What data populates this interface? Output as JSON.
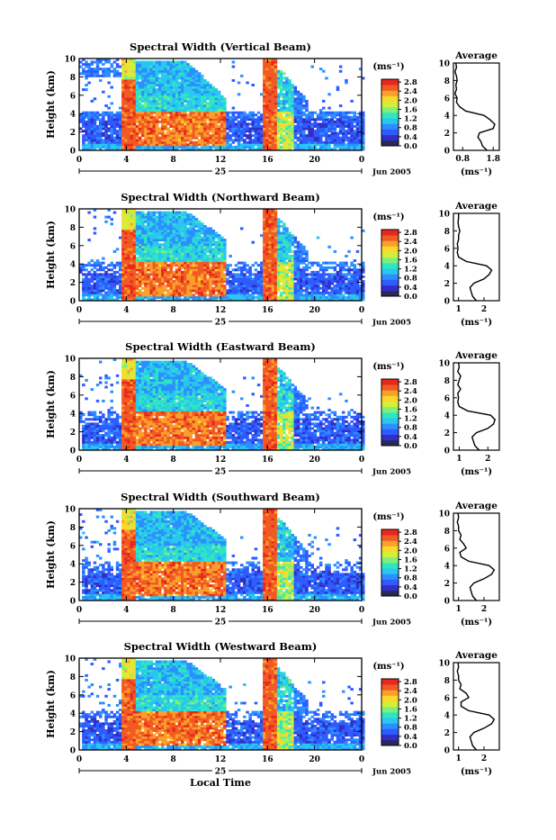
{
  "figure": {
    "common_xlabel": "Local Time",
    "ylabel": "Height (km)",
    "unit_label": "(ms⁻¹)",
    "date_label": "Jun 2005",
    "day_label": "25",
    "x_ticks": [
      "0",
      "4",
      "8",
      "12",
      "16",
      "20",
      "0"
    ],
    "y_ticks": [
      "0",
      "2",
      "4",
      "6",
      "8",
      "10"
    ],
    "colorbar_ticks": [
      "0.0",
      "0.4",
      "0.8",
      "1.2",
      "1.6",
      "2.0",
      "2.4",
      "2.8"
    ],
    "average_title": "Average",
    "average_xlabel": "(ms⁻¹)"
  },
  "colors": {
    "colormap": [
      "#2a2a5a",
      "#3030c8",
      "#2f5bff",
      "#2b8fff",
      "#29c6f0",
      "#2fe6c0",
      "#7ef07a",
      "#d4ee3a",
      "#fbd82a",
      "#f9a02a",
      "#f25a24",
      "#e8281e"
    ]
  },
  "chart_data": [
    {
      "type": "heatmap",
      "title": "Spectral Width (Vertical Beam)",
      "xlabel": "",
      "ylabel": "Height (km)",
      "xlim": [
        0,
        24
      ],
      "ylim": [
        0,
        10
      ],
      "colorbar": {
        "label": "(ms⁻¹)",
        "range": [
          0.0,
          2.8
        ]
      },
      "average_profile": {
        "title": "Average",
        "xlabel": "(ms⁻¹)",
        "x_ticks": [
          "0.8",
          "1.8"
        ],
        "xlim": [
          0.5,
          2.0
        ],
        "height": [
          0,
          0.5,
          1,
          1.5,
          2,
          2.5,
          3,
          3.5,
          4,
          4.5,
          5,
          5.5,
          6,
          6.5,
          7,
          7.5,
          8,
          8.5,
          9,
          9.5,
          10
        ],
        "value": [
          1.6,
          1.45,
          1.4,
          1.3,
          1.35,
          1.8,
          1.85,
          1.7,
          1.5,
          0.9,
          0.7,
          0.6,
          0.62,
          0.55,
          0.6,
          0.58,
          0.62,
          0.6,
          0.55,
          0.6,
          0.58
        ]
      }
    },
    {
      "type": "heatmap",
      "title": "Spectral Width (Northward Beam)",
      "xlabel": "",
      "ylabel": "Height (km)",
      "xlim": [
        0,
        24
      ],
      "ylim": [
        0,
        10
      ],
      "colorbar": {
        "label": "(ms⁻¹)",
        "range": [
          0.0,
          2.8
        ]
      },
      "average_profile": {
        "title": "Average",
        "xlabel": "(ms⁻¹)",
        "x_ticks": [
          "1",
          "2"
        ],
        "xlim": [
          0.8,
          2.6
        ],
        "height": [
          0,
          0.5,
          1,
          1.5,
          2,
          2.5,
          3,
          3.5,
          4,
          4.5,
          5,
          5.5,
          6,
          6.5,
          7,
          7.5,
          8,
          8.5,
          9,
          9.5,
          10
        ],
        "value": [
          1.7,
          1.55,
          1.5,
          1.45,
          1.6,
          2.0,
          2.2,
          2.3,
          2.1,
          1.3,
          1.0,
          0.95,
          0.98,
          0.95,
          1.0,
          1.0,
          1.05,
          1.0,
          0.98,
          1.0,
          1.0
        ]
      }
    },
    {
      "type": "heatmap",
      "title": "Spectral Width (Eastward Beam)",
      "xlabel": "",
      "ylabel": "Height (km)",
      "xlim": [
        0,
        24
      ],
      "ylim": [
        0,
        10
      ],
      "colorbar": {
        "label": "(ms⁻¹)",
        "range": [
          0.0,
          2.8
        ]
      },
      "average_profile": {
        "title": "Average",
        "xlabel": "(ms⁻¹)",
        "x_ticks": [
          "1",
          "2"
        ],
        "xlim": [
          0.8,
          2.4
        ],
        "height": [
          0,
          0.5,
          1,
          1.5,
          2,
          2.5,
          3,
          3.5,
          4,
          4.5,
          5,
          5.5,
          6,
          6.5,
          7,
          7.5,
          8,
          8.5,
          9,
          9.5,
          10
        ],
        "value": [
          1.7,
          1.55,
          1.5,
          1.45,
          1.6,
          2.0,
          2.2,
          2.25,
          2.1,
          1.3,
          1.0,
          0.95,
          0.98,
          0.95,
          1.05,
          0.95,
          1.0,
          1.05,
          0.95,
          1.0,
          0.98
        ]
      }
    },
    {
      "type": "heatmap",
      "title": "Spectral Width (Southward Beam)",
      "xlabel": "",
      "ylabel": "Height (km)",
      "xlim": [
        0,
        24
      ],
      "ylim": [
        0,
        10
      ],
      "colorbar": {
        "label": "(ms⁻¹)",
        "range": [
          0.0,
          2.8
        ]
      },
      "average_profile": {
        "title": "Average",
        "xlabel": "(ms⁻¹)",
        "x_ticks": [
          "1",
          "2"
        ],
        "xlim": [
          0.8,
          2.6
        ],
        "height": [
          0,
          0.5,
          1,
          1.5,
          2,
          2.5,
          3,
          3.5,
          4,
          4.5,
          5,
          5.5,
          6,
          6.5,
          7,
          7.5,
          8,
          8.5,
          9,
          9.5,
          10
        ],
        "value": [
          1.7,
          1.55,
          1.5,
          1.45,
          1.6,
          2.0,
          2.3,
          2.4,
          2.2,
          1.4,
          1.1,
          1.05,
          1.3,
          1.2,
          1.05,
          1.1,
          1.0,
          1.0,
          0.95,
          1.0,
          0.98
        ]
      }
    },
    {
      "type": "heatmap",
      "title": "Spectral Width (Westward Beam)",
      "xlabel": "Local Time",
      "ylabel": "Height (km)",
      "xlim": [
        0,
        24
      ],
      "ylim": [
        0,
        10
      ],
      "colorbar": {
        "label": "(ms⁻¹)",
        "range": [
          0.0,
          2.8
        ]
      },
      "average_profile": {
        "title": "Average",
        "xlabel": "(ms⁻¹)",
        "x_ticks": [
          "1",
          "2"
        ],
        "xlim": [
          0.8,
          2.6
        ],
        "height": [
          0,
          0.5,
          1,
          1.5,
          2,
          2.5,
          3,
          3.5,
          4,
          4.5,
          5,
          5.5,
          6,
          6.5,
          7,
          7.5,
          8,
          8.5,
          9,
          9.5,
          10
        ],
        "value": [
          1.7,
          1.55,
          1.5,
          1.45,
          1.6,
          2.0,
          2.3,
          2.4,
          2.2,
          1.4,
          1.1,
          1.1,
          1.4,
          1.3,
          1.05,
          1.1,
          1.0,
          1.0,
          0.95,
          1.0,
          0.98
        ]
      }
    }
  ]
}
